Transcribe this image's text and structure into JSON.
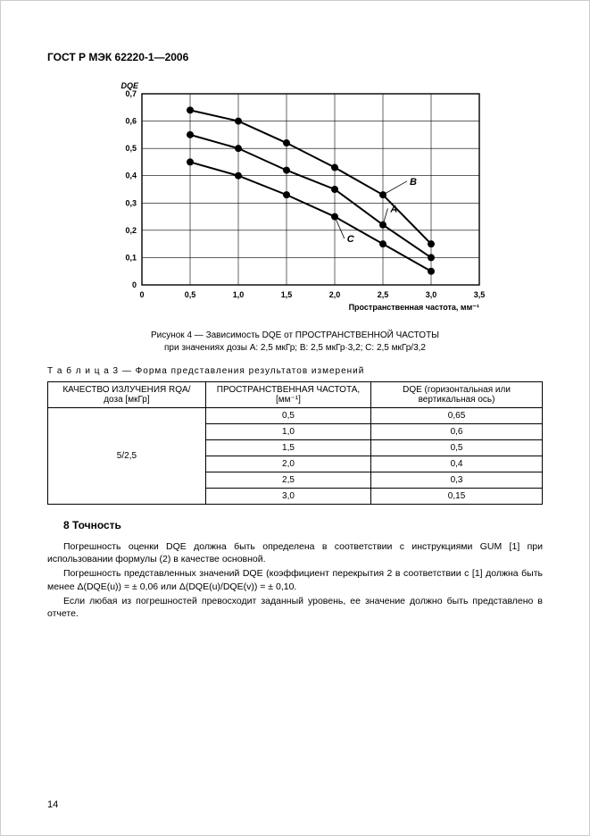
{
  "header": "ГОСТ Р МЭК 62220-1—2006",
  "page_number": "14",
  "chart": {
    "type": "line",
    "title_y": "DQE",
    "xlabel": "Пространственная частота, мм⁻¹",
    "xlim": [
      0,
      3.5
    ],
    "ylim": [
      0,
      0.7
    ],
    "xticks": [
      0,
      0.5,
      1.0,
      1.5,
      2.0,
      2.5,
      3.0,
      3.5
    ],
    "xtick_labels": [
      "0",
      "0,5",
      "1,0",
      "1,5",
      "2,0",
      "2,5",
      "3,0",
      "3,5"
    ],
    "yticks": [
      0,
      0.1,
      0.2,
      0.3,
      0.4,
      0.5,
      0.6,
      0.7
    ],
    "ytick_labels": [
      "0",
      "0,1",
      "0,2",
      "0,3",
      "0,4",
      "0,5",
      "0,6",
      "0,7"
    ],
    "background_color": "#ffffff",
    "grid_color": "#000000",
    "axis_color": "#000000",
    "line_color": "#000000",
    "line_width": 2,
    "marker": "circle",
    "marker_size": 4,
    "tick_fontsize": 9,
    "label_fontsize": 9,
    "series": {
      "A": {
        "x": [
          0.5,
          1.0,
          1.5,
          2.0,
          2.5,
          3.0
        ],
        "y": [
          0.55,
          0.5,
          0.42,
          0.35,
          0.22,
          0.1
        ],
        "label_pos": [
          2.55,
          0.28
        ]
      },
      "B": {
        "x": [
          0.5,
          1.0,
          1.5,
          2.0,
          2.5,
          3.0
        ],
        "y": [
          0.64,
          0.6,
          0.52,
          0.43,
          0.33,
          0.15
        ],
        "label_pos": [
          2.75,
          0.38
        ]
      },
      "C": {
        "x": [
          0.5,
          1.0,
          1.5,
          2.0,
          2.5,
          3.0
        ],
        "y": [
          0.45,
          0.4,
          0.33,
          0.25,
          0.15,
          0.05
        ],
        "label_pos": [
          2.1,
          0.17
        ]
      }
    }
  },
  "chart_caption": {
    "line1": "Рисунок 4 — Зависимость DQE от ПРОСТРАНСТВЕННОЙ ЧАСТОТЫ",
    "line2": "при значениях дозы A: 2,5 мкГр; B: 2,5 мкГр·3,2; C: 2,5 мкГр/3,2"
  },
  "table": {
    "caption": "Т а б л и ц а   3 — Форма представления результатов измерений",
    "columns": [
      "КАЧЕСТВО ИЗЛУЧЕНИЯ RQA/доза [мкГр]",
      "ПРОСТРАНСТВЕННАЯ ЧАСТОТА, [мм⁻¹]",
      "DQE (горизонтальная или вертикальная ось)"
    ],
    "row_label": "5/2,5",
    "rows": [
      [
        "0,5",
        "0,65"
      ],
      [
        "1,0",
        "0,6"
      ],
      [
        "1,5",
        "0,5"
      ],
      [
        "2,0",
        "0,4"
      ],
      [
        "2,5",
        "0,3"
      ],
      [
        "3,0",
        "0,15"
      ]
    ]
  },
  "section": {
    "heading": "8  Точность",
    "p1": "Погрешность оценки DQE должна быть определена в соответствии с инструкциями GUM [1] при использовании формулы (2) в качестве основной.",
    "p2": "Погрешность представленных значений DQE (коэффициент перекрытия 2 в соответствии с [1] должна быть менее Δ(DQE(u)) = ± 0,06 или Δ(DQE(u)/DQE(v)) = ± 0,10.",
    "p3": "Если любая из погрешностей превосходит заданный уровень, ее значение должно быть представлено в отчете."
  }
}
